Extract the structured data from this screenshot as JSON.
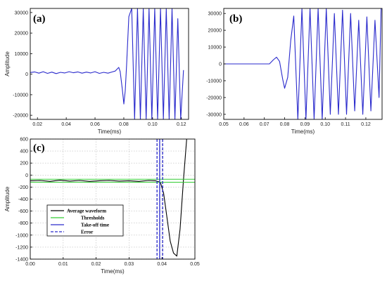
{
  "chart_data": [
    {
      "id": "a",
      "type": "line",
      "panel_label": "(a)",
      "xlabel": "Time(ms)",
      "ylabel": "Amplitude",
      "xlim": [
        0.015,
        0.125
      ],
      "ylim": [
        -22000,
        32000
      ],
      "xticks": [
        0.02,
        0.04,
        0.06,
        0.08,
        0.1,
        0.12
      ],
      "xtick_labels": [
        "0.02",
        "0.04",
        "0.06",
        "0.08",
        "0.10",
        "0.12"
      ],
      "yticks": [
        -20000,
        -10000,
        0,
        10000,
        20000,
        30000
      ],
      "ytick_labels": [
        "-20000",
        "-10000",
        "0",
        "10000",
        "20000",
        "30000"
      ],
      "grid": false,
      "series": [
        {
          "color": "#2a2acc",
          "x": [
            0.015,
            0.018,
            0.021,
            0.024,
            0.027,
            0.03,
            0.033,
            0.036,
            0.039,
            0.042,
            0.045,
            0.048,
            0.051,
            0.054,
            0.057,
            0.06,
            0.063,
            0.066,
            0.069,
            0.072,
            0.074,
            0.0755,
            0.0765,
            0.0775,
            0.079,
            0.08,
            0.081,
            0.082,
            0.0835,
            0.0855,
            0.0875,
            0.0895,
            0.0915,
            0.0935,
            0.0955,
            0.0975,
            0.0995,
            0.1015,
            0.1035,
            0.1055,
            0.1075,
            0.1095,
            0.1115,
            0.1135,
            0.1155,
            0.1175,
            0.1195,
            0.1215
          ],
          "y": [
            800,
            1100,
            500,
            1200,
            400,
            1000,
            300,
            900,
            600,
            1200,
            700,
            1100,
            500,
            1000,
            600,
            1200,
            400,
            900,
            500,
            1100,
            1500,
            2600,
            3300,
            1200,
            -7500,
            -14500,
            -8000,
            5000,
            28000,
            32000,
            -22000,
            32000,
            -22000,
            32000,
            -22000,
            32000,
            -22000,
            32000,
            -22000,
            32000,
            -22000,
            32000,
            -22000,
            32000,
            -22000,
            27000,
            -22000,
            2000
          ]
        }
      ]
    },
    {
      "id": "b",
      "type": "line",
      "panel_label": "(b)",
      "xlabel": "Time(ms)",
      "ylabel": "",
      "xlim": [
        0.05,
        0.128
      ],
      "ylim": [
        -33000,
        33000
      ],
      "xticks": [
        0.05,
        0.06,
        0.07,
        0.08,
        0.09,
        0.1,
        0.11,
        0.12
      ],
      "xtick_labels": [
        "0.05",
        "0.06",
        "0.07",
        "0.08",
        "0.09",
        "0.10",
        "0.11",
        "0.12"
      ],
      "yticks": [
        -30000,
        -20000,
        -10000,
        0,
        10000,
        20000,
        30000
      ],
      "ytick_labels": [
        "-30000",
        "-20000",
        "-10000",
        "0",
        "10000",
        "20000",
        "30000"
      ],
      "grid": false,
      "series": [
        {
          "color": "#2a2acc",
          "x": [
            0.05,
            0.055,
            0.06,
            0.065,
            0.07,
            0.0725,
            0.0745,
            0.076,
            0.0775,
            0.079,
            0.08,
            0.0815,
            0.083,
            0.0845,
            0.0865,
            0.0885,
            0.0905,
            0.0925,
            0.0945,
            0.0965,
            0.0985,
            0.1005,
            0.1025,
            0.1045,
            0.1065,
            0.1085,
            0.1105,
            0.1125,
            0.1145,
            0.1165,
            0.1185,
            0.1205,
            0.1225,
            0.1245,
            0.1265,
            0.1275
          ],
          "y": [
            0,
            0,
            0,
            0,
            0,
            0,
            2500,
            4000,
            1500,
            -9000,
            -14500,
            -8000,
            14000,
            28500,
            -33000,
            33000,
            -33000,
            33000,
            -33000,
            33000,
            -33000,
            33000,
            -30000,
            30000,
            -30000,
            32000,
            -30000,
            30000,
            -28000,
            26000,
            -30000,
            28000,
            -28000,
            26000,
            -20000,
            33000
          ]
        }
      ]
    },
    {
      "id": "c",
      "type": "line",
      "panel_label": "(c)",
      "xlabel": "Time(ms)",
      "ylabel": "Amplitude",
      "xlim": [
        0.0,
        0.05
      ],
      "ylim": [
        -1400,
        600
      ],
      "xticks": [
        0.0,
        0.01,
        0.02,
        0.03,
        0.04,
        0.05
      ],
      "xtick_labels": [
        "0.00",
        "0.01",
        "0.02",
        "0.03",
        "0.04",
        "0.05"
      ],
      "yticks": [
        -1400,
        -1200,
        -1000,
        -800,
        -600,
        -400,
        -200,
        0,
        200,
        400,
        600
      ],
      "ytick_labels": [
        "-1400",
        "-1200",
        "-1000",
        "-800",
        "-600",
        "-400",
        "-200",
        "0",
        "200",
        "400",
        "600"
      ],
      "grid": true,
      "legend_position": "lower-left",
      "legend": [
        {
          "label": "Average waveform",
          "color": "#000000",
          "style": "solid"
        },
        {
          "label": "Thresholds",
          "color": "#33cc33",
          "style": "solid"
        },
        {
          "label": "Take-off time",
          "color": "#2a2acc",
          "style": "solid"
        },
        {
          "label": "Error",
          "color": "#2a2acc",
          "style": "dashed"
        }
      ],
      "series": [
        {
          "name": "Average waveform",
          "color": "#000000",
          "x": [
            0.0,
            0.003,
            0.006,
            0.009,
            0.012,
            0.015,
            0.018,
            0.021,
            0.024,
            0.027,
            0.03,
            0.033,
            0.036,
            0.038,
            0.0395,
            0.0405,
            0.0415,
            0.0425,
            0.0435,
            0.0445,
            0.0455,
            0.0465,
            0.0475
          ],
          "y": [
            -95,
            -90,
            -105,
            -85,
            -100,
            -90,
            -105,
            -95,
            -90,
            -100,
            -95,
            -105,
            -90,
            -95,
            -120,
            -300,
            -700,
            -1100,
            -1300,
            -1350,
            -900,
            -100,
            600
          ]
        },
        {
          "name": "Thresholds",
          "color": "#33cc33",
          "lines": [
            -70,
            -120
          ]
        }
      ],
      "vlines": [
        {
          "name": "Take-off time",
          "x": 0.0393,
          "color": "#2a2acc",
          "style": "solid"
        },
        {
          "name": "Error",
          "x": 0.0385,
          "color": "#2a2acc",
          "style": "dashed"
        },
        {
          "name": "Error",
          "x": 0.0402,
          "color": "#2a2acc",
          "style": "dashed"
        }
      ]
    }
  ]
}
